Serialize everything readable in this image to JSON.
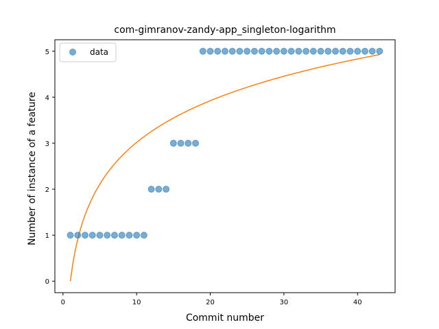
{
  "chart_data": {
    "type": "scatter",
    "title": "com-gimranov-zandy-app_singleton-logarithm",
    "xlabel": "Commit number",
    "ylabel": "Number of instance of a feature",
    "xlim": [
      -1.1,
      45.1
    ],
    "ylim": [
      -0.25,
      5.25
    ],
    "xticks": [
      0,
      10,
      20,
      30,
      40
    ],
    "yticks": [
      0,
      1,
      2,
      3,
      4,
      5
    ],
    "grid": false,
    "legend_position": "top-left",
    "series": [
      {
        "name": "data",
        "kind": "scatter",
        "color": "#1f77b4",
        "x": [
          1,
          2,
          3,
          4,
          5,
          6,
          7,
          8,
          9,
          10,
          11,
          12,
          13,
          14,
          15,
          16,
          17,
          18,
          19,
          20,
          21,
          22,
          23,
          24,
          25,
          26,
          27,
          28,
          29,
          30,
          31,
          32,
          33,
          34,
          35,
          36,
          37,
          38,
          39,
          40,
          41,
          42,
          43
        ],
        "y": [
          1,
          1,
          1,
          1,
          1,
          1,
          1,
          1,
          1,
          1,
          1,
          2,
          2,
          2,
          3,
          3,
          3,
          3,
          5,
          5,
          5,
          5,
          5,
          5,
          5,
          5,
          5,
          5,
          5,
          5,
          5,
          5,
          5,
          5,
          5,
          5,
          5,
          5,
          5,
          5,
          5,
          5,
          5
        ]
      },
      {
        "kind": "line",
        "color": "#ff7f0e",
        "fit": "logarithmic",
        "coefficient": 1.31,
        "x_start": 1,
        "x_end": 43
      }
    ]
  }
}
